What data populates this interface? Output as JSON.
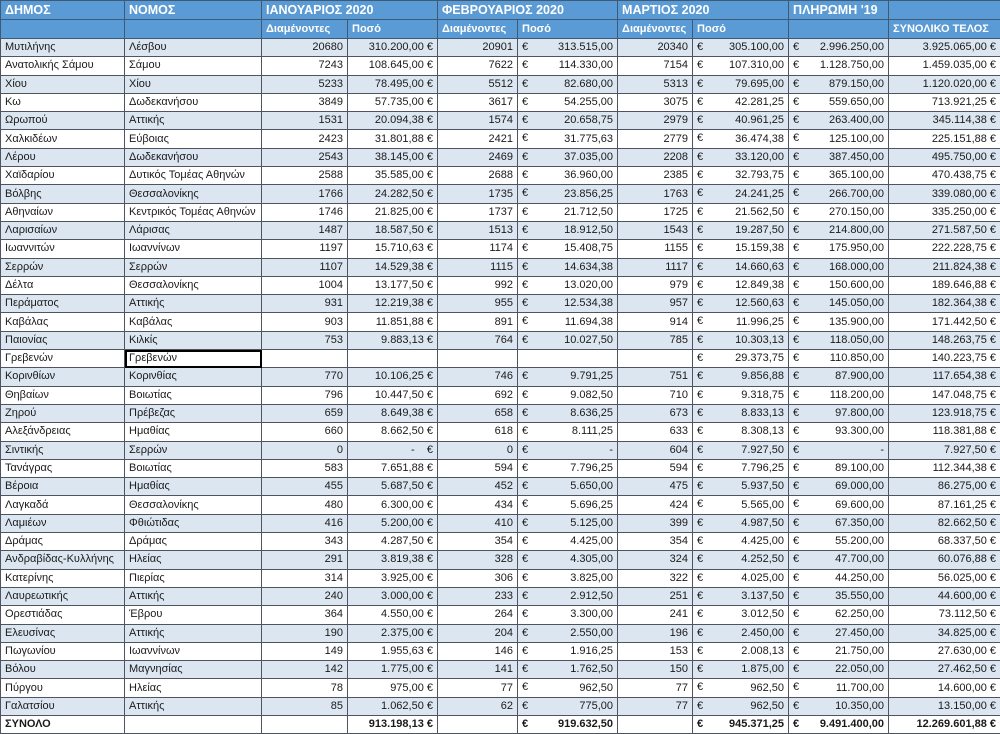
{
  "currency": "€",
  "header": {
    "dimos": "ΔΗΜΟΣ",
    "nomos": "ΝΟΜΟΣ",
    "jan": "ΙΑΝΟΥΑΡΙΟΣ 2020",
    "feb": "ΦΕΒΡΟΥΑΡΙΟΣ 2020",
    "mar": "ΜΑΡΤΙΟΣ 2020",
    "pay19": "ΠΛΗΡΩΜΗ '19",
    "total": "ΣΥΝΟΛΙΚΟ ΤΕΛΟΣ",
    "residents": "Διαμένοντες",
    "amount": "Ποσό"
  },
  "colors": {
    "header_bg": "#5b9bd5",
    "band_bg": "#dce6f1",
    "grid": "#4f5560"
  },
  "rows": [
    {
      "dimos": "Μυτιλήνης",
      "nomos": "Λέσβου",
      "jan_res": "20680",
      "jan_amt": "310.200,00 €",
      "feb_res": "20901",
      "feb_amt": "313.515,00",
      "mar_res": "20340",
      "mar_amt": "305.100,00",
      "pay19": "2.996.250,00",
      "total": "3.925.065,00 €",
      "selected": ""
    },
    {
      "dimos": "Ανατολικής Σάμου",
      "nomos": "Σάμου",
      "jan_res": "7243",
      "jan_amt": "108.645,00 €",
      "feb_res": "7622",
      "feb_amt": "114.330,00",
      "mar_res": "7154",
      "mar_amt": "107.310,00",
      "pay19": "1.128.750,00",
      "total": "1.459.035,00 €",
      "selected": ""
    },
    {
      "dimos": "Χίου",
      "nomos": "Χίου",
      "jan_res": "5233",
      "jan_amt": "78.495,00 €",
      "feb_res": "5512",
      "feb_amt": "82.680,00",
      "mar_res": "5313",
      "mar_amt": "79.695,00",
      "pay19": "879.150,00",
      "total": "1.120.020,00 €",
      "selected": ""
    },
    {
      "dimos": "Κω",
      "nomos": "Δωδεκανήσου",
      "jan_res": "3849",
      "jan_amt": "57.735,00 €",
      "feb_res": "3617",
      "feb_amt": "54.255,00",
      "mar_res": "3075",
      "mar_amt": "42.281,25",
      "pay19": "559.650,00",
      "total": "713.921,25 €",
      "selected": ""
    },
    {
      "dimos": "Ωρωπού",
      "nomos": "Αττικής",
      "jan_res": "1531",
      "jan_amt": "20.094,38 €",
      "feb_res": "1574",
      "feb_amt": "20.658,75",
      "mar_res": "2979",
      "mar_amt": "40.961,25",
      "pay19": "263.400,00",
      "total": "345.114,38 €",
      "selected": ""
    },
    {
      "dimos": "Χαλκιδέων",
      "nomos": "Εύβοιας",
      "jan_res": "2423",
      "jan_amt": "31.801,88 €",
      "feb_res": "2421",
      "feb_amt": "31.775,63",
      "mar_res": "2779",
      "mar_amt": "36.474,38",
      "pay19": "125.100,00",
      "total": "225.151,88 €",
      "selected": ""
    },
    {
      "dimos": "Λέρου",
      "nomos": "Δωδεκανήσου",
      "jan_res": "2543",
      "jan_amt": "38.145,00 €",
      "feb_res": "2469",
      "feb_amt": "37.035,00",
      "mar_res": "2208",
      "mar_amt": "33.120,00",
      "pay19": "387.450,00",
      "total": "495.750,00 €",
      "selected": ""
    },
    {
      "dimos": "Χαϊδαρίου",
      "nomos": "Δυτικός Τομέας Αθηνών",
      "jan_res": "2588",
      "jan_amt": "35.585,00 €",
      "feb_res": "2688",
      "feb_amt": "36.960,00",
      "mar_res": "2385",
      "mar_amt": "32.793,75",
      "pay19": "365.100,00",
      "total": "470.438,75 €",
      "selected": ""
    },
    {
      "dimos": "Βόλβης",
      "nomos": "Θεσσαλονίκης",
      "jan_res": "1766",
      "jan_amt": "24.282,50 €",
      "feb_res": "1735",
      "feb_amt": "23.856,25",
      "mar_res": "1763",
      "mar_amt": "24.241,25",
      "pay19": "266.700,00",
      "total": "339.080,00 €",
      "selected": ""
    },
    {
      "dimos": "Αθηναίων",
      "nomos": "Κεντρικός Τομέας Αθηνών",
      "jan_res": "1746",
      "jan_amt": "21.825,00 €",
      "feb_res": "1737",
      "feb_amt": "21.712,50",
      "mar_res": "1725",
      "mar_amt": "21.562,50",
      "pay19": "270.150,00",
      "total": "335.250,00 €",
      "selected": ""
    },
    {
      "dimos": "Λαρισαίων",
      "nomos": "Λάρισας",
      "jan_res": "1487",
      "jan_amt": "18.587,50 €",
      "feb_res": "1513",
      "feb_amt": "18.912,50",
      "mar_res": "1543",
      "mar_amt": "19.287,50",
      "pay19": "214.800,00",
      "total": "271.587,50 €",
      "selected": ""
    },
    {
      "dimos": "Ιωαννιτών",
      "nomos": "Ιωαννίνων",
      "jan_res": "1197",
      "jan_amt": "15.710,63 €",
      "feb_res": "1174",
      "feb_amt": "15.408,75",
      "mar_res": "1155",
      "mar_amt": "15.159,38",
      "pay19": "175.950,00",
      "total": "222.228,75 €",
      "selected": ""
    },
    {
      "dimos": "Σερρών",
      "nomos": "Σερρών",
      "jan_res": "1107",
      "jan_amt": "14.529,38 €",
      "feb_res": "1115",
      "feb_amt": "14.634,38",
      "mar_res": "1117",
      "mar_amt": "14.660,63",
      "pay19": "168.000,00",
      "total": "211.824,38 €",
      "selected": ""
    },
    {
      "dimos": "Δέλτα",
      "nomos": "Θεσσαλονίκης",
      "jan_res": "1004",
      "jan_amt": "13.177,50 €",
      "feb_res": "992",
      "feb_amt": "13.020,00",
      "mar_res": "979",
      "mar_amt": "12.849,38",
      "pay19": "150.600,00",
      "total": "189.646,88 €",
      "selected": ""
    },
    {
      "dimos": "Περάματος",
      "nomos": "Αττικής",
      "jan_res": "931",
      "jan_amt": "12.219,38 €",
      "feb_res": "955",
      "feb_amt": "12.534,38",
      "mar_res": "957",
      "mar_amt": "12.560,63",
      "pay19": "145.050,00",
      "total": "182.364,38 €",
      "selected": ""
    },
    {
      "dimos": "Καβάλας",
      "nomos": "Καβάλας",
      "jan_res": "903",
      "jan_amt": "11.851,88 €",
      "feb_res": "891",
      "feb_amt": "11.694,38",
      "mar_res": "914",
      "mar_amt": "11.996,25",
      "pay19": "135.900,00",
      "total": "171.442,50 €",
      "selected": ""
    },
    {
      "dimos": "Παιονίας",
      "nomos": "Κιλκίς",
      "jan_res": "753",
      "jan_amt": "9.883,13 €",
      "feb_res": "764",
      "feb_amt": "10.027,50",
      "mar_res": "785",
      "mar_amt": "10.303,13",
      "pay19": "118.050,00",
      "total": "148.263,75 €",
      "selected": ""
    },
    {
      "dimos": "Γρεβενών",
      "nomos": "Γρεβενών",
      "jan_res": "",
      "jan_amt": "",
      "feb_res": "",
      "feb_amt": "",
      "mar_res": "",
      "mar_amt": "29.373,75",
      "pay19": "110.850,00",
      "total": "140.223,75 €",
      "selected": "nomos"
    },
    {
      "dimos": "Κορινθίων",
      "nomos": "Κορινθίας",
      "jan_res": "770",
      "jan_amt": "10.106,25 €",
      "feb_res": "746",
      "feb_amt": "9.791,25",
      "mar_res": "751",
      "mar_amt": "9.856,88",
      "pay19": "87.900,00",
      "total": "117.654,38 €",
      "selected": ""
    },
    {
      "dimos": "Θηβαίων",
      "nomos": "Βοιωτίας",
      "jan_res": "796",
      "jan_amt": "10.447,50 €",
      "feb_res": "692",
      "feb_amt": "9.082,50",
      "mar_res": "710",
      "mar_amt": "9.318,75",
      "pay19": "118.200,00",
      "total": "147.048,75 €",
      "selected": ""
    },
    {
      "dimos": "Ζηρού",
      "nomos": "Πρέβεζας",
      "jan_res": "659",
      "jan_amt": "8.649,38 €",
      "feb_res": "658",
      "feb_amt": "8.636,25",
      "mar_res": "673",
      "mar_amt": "8.833,13",
      "pay19": "97.800,00",
      "total": "123.918,75 €",
      "selected": ""
    },
    {
      "dimos": "Αλεξάνδρειας",
      "nomos": "Ημαθίας",
      "jan_res": "660",
      "jan_amt": "8.662,50 €",
      "feb_res": "618",
      "feb_amt": "8.111,25",
      "mar_res": "633",
      "mar_amt": "8.308,13",
      "pay19": "93.300,00",
      "total": "118.381,88 €",
      "selected": ""
    },
    {
      "dimos": "Σιντικής",
      "nomos": "Σερρών",
      "jan_res": "0",
      "jan_amt": "-    €",
      "feb_res": "0",
      "feb_amt": "-",
      "mar_res": "604",
      "mar_amt": "7.927,50",
      "pay19": "-",
      "total": "7.927,50 €",
      "selected": ""
    },
    {
      "dimos": "Τανάγρας",
      "nomos": "Βοιωτίας",
      "jan_res": "583",
      "jan_amt": "7.651,88 €",
      "feb_res": "594",
      "feb_amt": "7.796,25",
      "mar_res": "594",
      "mar_amt": "7.796,25",
      "pay19": "89.100,00",
      "total": "112.344,38 €",
      "selected": ""
    },
    {
      "dimos": "Βέροια",
      "nomos": "Ημαθίας",
      "jan_res": "455",
      "jan_amt": "5.687,50 €",
      "feb_res": "452",
      "feb_amt": "5.650,00",
      "mar_res": "475",
      "mar_amt": "5.937,50",
      "pay19": "69.000,00",
      "total": "86.275,00 €",
      "selected": ""
    },
    {
      "dimos": "Λαγκαδά",
      "nomos": "Θεσσαλονίκης",
      "jan_res": "480",
      "jan_amt": "6.300,00 €",
      "feb_res": "434",
      "feb_amt": "5.696,25",
      "mar_res": "424",
      "mar_amt": "5.565,00",
      "pay19": "69.600,00",
      "total": "87.161,25 €",
      "selected": ""
    },
    {
      "dimos": "Λαμιέων",
      "nomos": "Φθιώτιδας",
      "jan_res": "416",
      "jan_amt": "5.200,00 €",
      "feb_res": "410",
      "feb_amt": "5.125,00",
      "mar_res": "399",
      "mar_amt": "4.987,50",
      "pay19": "67.350,00",
      "total": "82.662,50 €",
      "selected": ""
    },
    {
      "dimos": "Δράμας",
      "nomos": "Δράμας",
      "jan_res": "343",
      "jan_amt": "4.287,50 €",
      "feb_res": "354",
      "feb_amt": "4.425,00",
      "mar_res": "354",
      "mar_amt": "4.425,00",
      "pay19": "55.200,00",
      "total": "68.337,50 €",
      "selected": ""
    },
    {
      "dimos": "Ανδραβίδας-Κυλλήνης",
      "nomos": "Ηλείας",
      "jan_res": "291",
      "jan_amt": "3.819,38 €",
      "feb_res": "328",
      "feb_amt": "4.305,00",
      "mar_res": "324",
      "mar_amt": "4.252,50",
      "pay19": "47.700,00",
      "total": "60.076,88 €",
      "selected": ""
    },
    {
      "dimos": "Κατερίνης",
      "nomos": "Πιερίας",
      "jan_res": "314",
      "jan_amt": "3.925,00 €",
      "feb_res": "306",
      "feb_amt": "3.825,00",
      "mar_res": "322",
      "mar_amt": "4.025,00",
      "pay19": "44.250,00",
      "total": "56.025,00 €",
      "selected": ""
    },
    {
      "dimos": "Λαυρεωτικής",
      "nomos": "Αττικής",
      "jan_res": "240",
      "jan_amt": "3.000,00 €",
      "feb_res": "233",
      "feb_amt": "2.912,50",
      "mar_res": "251",
      "mar_amt": "3.137,50",
      "pay19": "35.550,00",
      "total": "44.600,00 €",
      "selected": ""
    },
    {
      "dimos": "Ορεστιάδας",
      "nomos": "Έβρου",
      "jan_res": "364",
      "jan_amt": "4.550,00 €",
      "feb_res": "264",
      "feb_amt": "3.300,00",
      "mar_res": "241",
      "mar_amt": "3.012,50",
      "pay19": "62.250,00",
      "total": "73.112,50 €",
      "selected": ""
    },
    {
      "dimos": "Ελευσίνας",
      "nomos": "Αττικής",
      "jan_res": "190",
      "jan_amt": "2.375,00 €",
      "feb_res": "204",
      "feb_amt": "2.550,00",
      "mar_res": "196",
      "mar_amt": "2.450,00",
      "pay19": "27.450,00",
      "total": "34.825,00 €",
      "selected": ""
    },
    {
      "dimos": "Πωγωνίου",
      "nomos": "Ιωαννίνων",
      "jan_res": "149",
      "jan_amt": "1.955,63 €",
      "feb_res": "146",
      "feb_amt": "1.916,25",
      "mar_res": "153",
      "mar_amt": "2.008,13",
      "pay19": "21.750,00",
      "total": "27.630,00 €",
      "selected": ""
    },
    {
      "dimos": "Βόλου",
      "nomos": "Μαγνησίας",
      "jan_res": "142",
      "jan_amt": "1.775,00 €",
      "feb_res": "141",
      "feb_amt": "1.762,50",
      "mar_res": "150",
      "mar_amt": "1.875,00",
      "pay19": "22.050,00",
      "total": "27.462,50 €",
      "selected": ""
    },
    {
      "dimos": "Πύργου",
      "nomos": "Ηλείας",
      "jan_res": "78",
      "jan_amt": "975,00 €",
      "feb_res": "77",
      "feb_amt": "962,50",
      "mar_res": "77",
      "mar_amt": "962,50",
      "pay19": "11.700,00",
      "total": "14.600,00 €",
      "selected": ""
    },
    {
      "dimos": "Γαλατσίου",
      "nomos": "Αττικής",
      "jan_res": "85",
      "jan_amt": "1.062,50 €",
      "feb_res": "62",
      "feb_amt": "775,00",
      "mar_res": "77",
      "mar_amt": "962,50",
      "pay19": "10.350,00",
      "total": "13.150,00 €",
      "selected": ""
    }
  ],
  "total_row": {
    "label": "ΣΥΝΟΛΟ",
    "jan_amt": "913.198,13 €",
    "feb_amt": "919.632,50",
    "mar_amt": "945.371,25",
    "pay19": "9.491.400,00",
    "total": "12.269.601,88 €"
  }
}
